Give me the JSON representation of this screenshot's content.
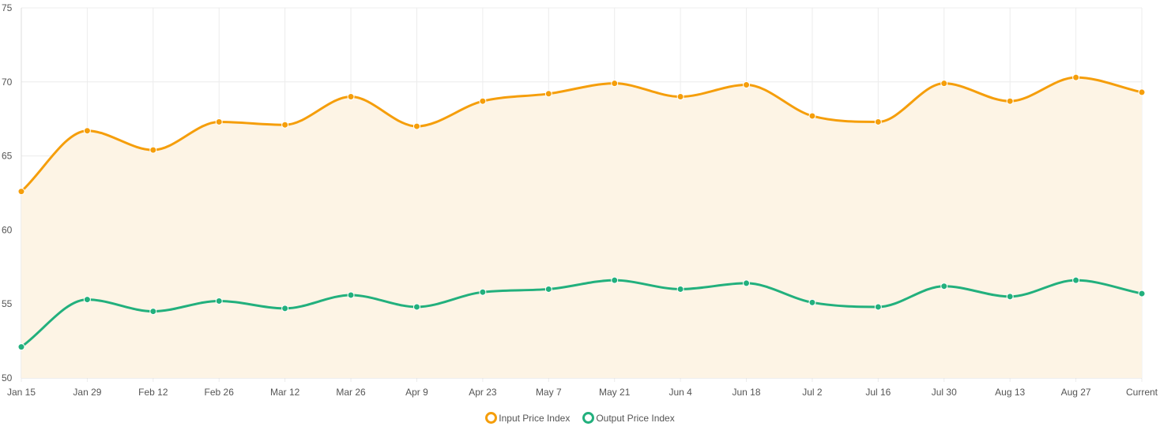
{
  "chart_data": {
    "type": "line",
    "title": "",
    "xlabel": "",
    "ylabel": "",
    "ylim": [
      50,
      75
    ],
    "yticks": [
      50,
      55,
      60,
      65,
      70,
      75
    ],
    "grid": true,
    "legend_position": "bottom",
    "categories": [
      "Jan 15",
      "Jan 29",
      "Feb 12",
      "Feb 26",
      "Mar 12",
      "Mar 26",
      "Apr 9",
      "Apr 23",
      "May 7",
      "May 21",
      "Jun 4",
      "Jun 18",
      "Jul 2",
      "Jul 16",
      "Jul 30",
      "Aug 13",
      "Aug 27",
      "Current"
    ],
    "series": [
      {
        "name": "Input Price Index",
        "color": "#f59e0b",
        "fill": "#fdf4e5",
        "values": [
          62.6,
          66.7,
          65.4,
          67.3,
          67.1,
          69.0,
          67.0,
          68.7,
          69.2,
          69.9,
          69.0,
          69.8,
          67.7,
          67.3,
          69.9,
          68.7,
          70.3,
          69.3
        ]
      },
      {
        "name": "Output Price Index",
        "color": "#22b07d",
        "values": [
          52.1,
          55.3,
          54.5,
          55.2,
          54.7,
          55.6,
          54.8,
          55.8,
          56.0,
          56.6,
          56.0,
          56.4,
          55.1,
          54.8,
          56.2,
          55.5,
          56.6,
          55.7
        ]
      }
    ]
  }
}
